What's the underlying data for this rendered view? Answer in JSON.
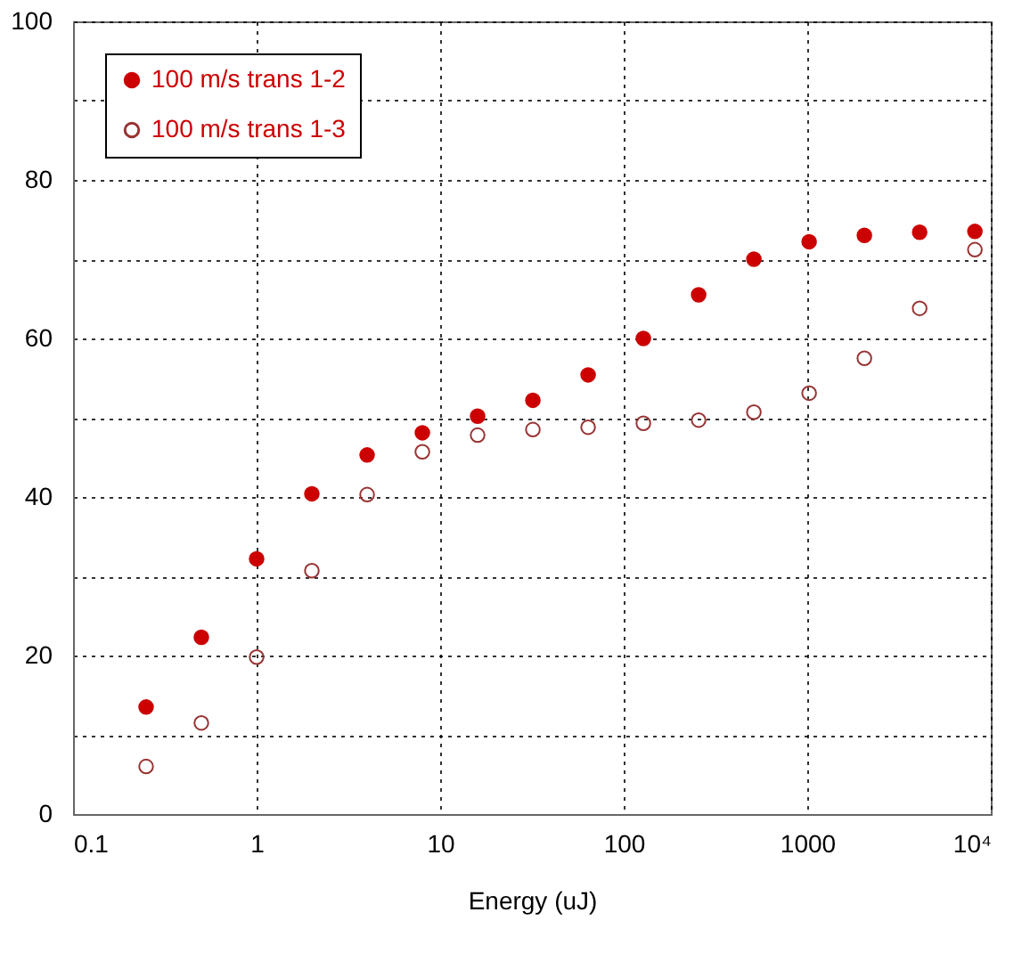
{
  "chart_data": {
    "type": "scatter",
    "xlabel": "Energy (uJ)",
    "x": [
      0.25,
      0.5,
      1,
      2,
      4,
      8,
      16,
      32,
      64,
      128,
      256,
      512,
      1024,
      2048,
      4096,
      8192
    ],
    "series": [
      {
        "name": "100 m/s trans 1-2",
        "color": "#cc0000",
        "values": [
          13.5,
          22.3,
          32.2,
          40.4,
          45.3,
          48.1,
          50.2,
          52.2,
          55.4,
          60,
          65.5,
          70,
          72.2,
          73,
          73.4,
          73.5
        ]
      },
      {
        "name": "100 m/s trans 1-3",
        "color": "#993333",
        "values": [
          6,
          11.5,
          19.8,
          30.7,
          40.3,
          45.7,
          47.8,
          48.5,
          48.8,
          49.3,
          49.7,
          50.7,
          53.1,
          57.5,
          63.8,
          71.2
        ]
      }
    ],
    "log": "x",
    "xlim": [
      0.1,
      10000
    ],
    "xticks": [
      0.1,
      1,
      10,
      100,
      1000,
      {
        "value": 10000,
        "label": "10⁴"
      }
    ],
    "ylim": [
      0,
      100
    ],
    "yticks": [
      0,
      {
        "value": 10,
        "label": null
      },
      20,
      {
        "value": 30,
        "label": null
      },
      40,
      {
        "value": 50,
        "label": null
      },
      60,
      {
        "value": 70,
        "label": null
      },
      80,
      {
        "value": 90,
        "label": null
      },
      100
    ],
    "grid": true,
    "legend": "top left",
    "marker": "circle"
  }
}
